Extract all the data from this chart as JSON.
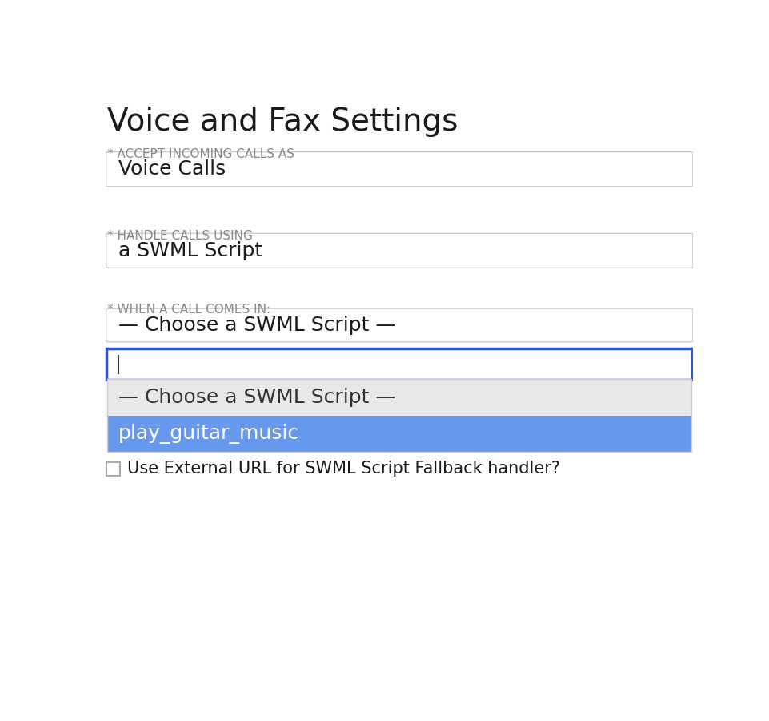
{
  "title": "Voice and Fax Settings",
  "title_fontsize": 28,
  "title_color": "#1a1a1a",
  "bg_color": "#ffffff",
  "label_color": "#888888",
  "label_fontsize": 11,
  "field_text_color": "#1a1a1a",
  "field_fontsize": 18,
  "field_bg": "#ffffff",
  "field_border": "#cccccc",
  "label1": "* ACCEPT INCOMING CALLS AS",
  "value1": "Voice Calls",
  "label2": "* HANDLE CALLS USING",
  "value2": "a SWML Script",
  "label3": "* WHEN A CALL COMES IN:",
  "dropdown_placeholder": "— Choose a SWML Script —",
  "search_box_border": "#3355cc",
  "search_bg": "#ffffff",
  "dropdown_bg": "#e8e8e8",
  "dropdown_placeholder_color": "#333333",
  "dropdown_placeholder_fontsize": 18,
  "selected_item": "play_guitar_music",
  "selected_bg": "#6699ee",
  "selected_text_color": "#ffffff",
  "selected_fontsize": 18,
  "checkbox_label": "Use External URL for SWML Script Fallback handler?",
  "checkbox_label_fontsize": 15,
  "checkbox_label_color": "#1a1a1a"
}
